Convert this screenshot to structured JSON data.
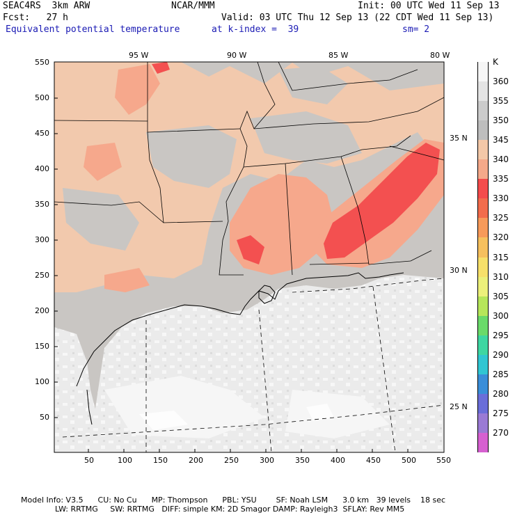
{
  "header": {
    "line1_left": "SEAC4RS  3km ARW",
    "line1_mid": "NCAR/MMM",
    "line1_right": "Init: 00 UTC Wed 11 Sep 13",
    "line2_left": "Fcst:   27 h",
    "line2_right": "Valid: 03 UTC Thu 12 Sep 13 (22 CDT Wed 11 Sep 13)",
    "line3_left": "Equivalent potential temperature",
    "line3_mid": "at k-index =  39",
    "line3_right": "sm= 2"
  },
  "map": {
    "lon_labels": [
      "95 W",
      "90 W",
      "85 W",
      "80 W"
    ],
    "lat_labels": [
      "35 N",
      "30 N",
      "25 N"
    ],
    "y_ticks": [
      "550",
      "500",
      "450",
      "400",
      "350",
      "300",
      "250",
      "200",
      "150",
      "100",
      "50"
    ],
    "x_ticks": [
      "50",
      "100",
      "150",
      "200",
      "250",
      "300",
      "350",
      "400",
      "450",
      "500",
      "550"
    ]
  },
  "legend": {
    "unit": "K",
    "entries": [
      {
        "label": "360",
        "color": "#f6f6f6"
      },
      {
        "label": "355",
        "color": "#e4e4e4"
      },
      {
        "label": "350",
        "color": "#cbcbcb"
      },
      {
        "label": "345",
        "color": "#bebebe"
      },
      {
        "label": "340",
        "color": "#f3c8a8"
      },
      {
        "label": "335",
        "color": "#f5a98a"
      },
      {
        "label": "330",
        "color": "#f44c4c"
      },
      {
        "label": "325",
        "color": "#f26c4c"
      },
      {
        "label": "320",
        "color": "#f79a5a"
      },
      {
        "label": "315",
        "color": "#f6c05e"
      },
      {
        "label": "310",
        "color": "#f7e06a"
      },
      {
        "label": "305",
        "color": "#ecf07a"
      },
      {
        "label": "300",
        "color": "#b6e65a"
      },
      {
        "label": "295",
        "color": "#6ada6a"
      },
      {
        "label": "290",
        "color": "#3ed6a2"
      },
      {
        "label": "285",
        "color": "#30c6d2"
      },
      {
        "label": "280",
        "color": "#3a8ed8"
      },
      {
        "label": "275",
        "color": "#6a6ed8"
      },
      {
        "label": "270",
        "color": "#9a7ad4"
      },
      {
        "label": "",
        "color": "#d660d0"
      }
    ]
  },
  "footer": {
    "line1": "Model Info: V3.5      CU: No Cu      MP: Thompson      PBL: YSU        SF: Noah LSM      3.0 km   39 levels    18 sec",
    "line2": "              LW: RRTMG     SW: RRTMG   DIFF: simple KM: 2D Smagor DAMP: Rayleigh3  SFLAY: Rev MM5"
  },
  "colors": {
    "ocean": "#ebebeb",
    "ocean_light": "#f6f6f6",
    "land_gray": "#c9c6c3",
    "land_tan": "#f2c9ad",
    "salmon": "#f6a88c",
    "red": "#f35050"
  }
}
